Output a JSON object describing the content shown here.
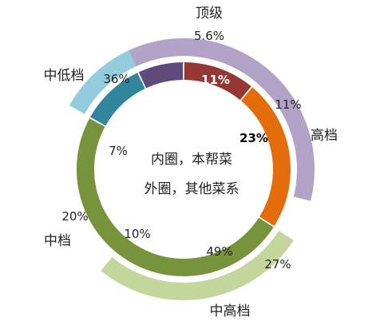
{
  "chart_data": {
    "type": "donut",
    "center_text": [
      "内圈，本帮菜",
      "外圈，其他菜系"
    ],
    "categories": [
      "顶级",
      "高档",
      "中高档",
      "中档",
      "中低档"
    ],
    "series": [
      {
        "ring": "inner",
        "values": [
          11,
          23,
          49,
          10,
          7
        ],
        "labels": [
          "11%",
          "23%",
          "49%",
          "10%",
          "7%"
        ],
        "colors": [
          "#953735",
          "#E46C0A",
          "#77933C",
          "#31859C",
          "#604A7B"
        ]
      },
      {
        "ring": "outer",
        "values": [
          5.6,
          11,
          27,
          20,
          36
        ],
        "labels": [
          "5.6%",
          "11%",
          "27%",
          "20%",
          "36%"
        ],
        "colors": [
          "#D99694",
          "#FAC090",
          "#C3D69B",
          "#93CDDD",
          "#B3A2C7"
        ]
      }
    ]
  }
}
